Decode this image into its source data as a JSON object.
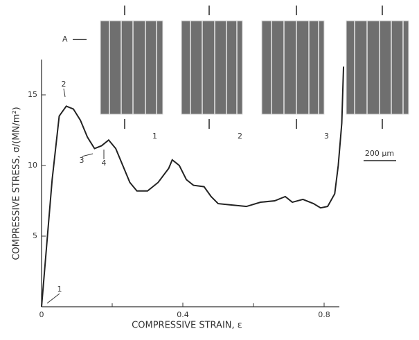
{
  "chart_data": {
    "type": "line",
    "x_label": "COMPRESSIVE STRAIN, ε",
    "y_label": "COMPRESSIVE STRESS, σ/(MN/m²)",
    "x": [
      0,
      0.01,
      0.03,
      0.05,
      0.07,
      0.09,
      0.11,
      0.13,
      0.15,
      0.17,
      0.19,
      0.21,
      0.23,
      0.25,
      0.27,
      0.3,
      0.33,
      0.36,
      0.37,
      0.39,
      0.41,
      0.43,
      0.46,
      0.48,
      0.5,
      0.54,
      0.58,
      0.62,
      0.66,
      0.69,
      0.71,
      0.74,
      0.77,
      0.79,
      0.81,
      0.83,
      0.84,
      0.85,
      0.855
    ],
    "series": [
      {
        "color": "#222222",
        "values": [
          0,
          3,
          9,
          13.5,
          14.2,
          14,
          13.2,
          12,
          11.2,
          11.4,
          11.8,
          11.2,
          10,
          8.8,
          8.2,
          8.2,
          8.8,
          9.8,
          10.4,
          10,
          9,
          8.6,
          8.5,
          7.8,
          7.3,
          7.2,
          7.1,
          7.4,
          7.5,
          7.8,
          7.4,
          7.6,
          7.3,
          7,
          7.1,
          8,
          10,
          13,
          17
        ]
      }
    ],
    "xlim": [
      0,
      0.9
    ],
    "ylim": [
      0,
      17.5
    ],
    "xticks": [
      0,
      0.4,
      0.8
    ],
    "x_minor_ticks": [
      0.2,
      0.6
    ],
    "yticks": [
      5,
      10,
      15
    ],
    "annotations": [
      "1",
      "2",
      "3",
      "4"
    ],
    "inset_labels": [
      "1",
      "2",
      "3"
    ],
    "direction_label": "A",
    "scale_bar": "200 µm"
  }
}
